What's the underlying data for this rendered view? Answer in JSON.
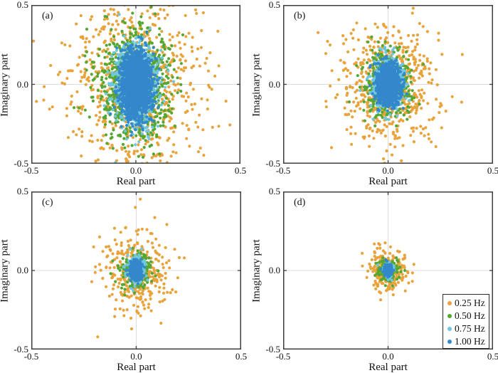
{
  "figure": {
    "background": "#ffffff",
    "axis_color": "#3d3d3d",
    "grid_color": "#dcdcdc",
    "text_color": "#111111",
    "x_label": "Real part",
    "y_label": "Imaginary part",
    "x_tick_labels": [
      "-0.5",
      "0.0",
      "0.5"
    ],
    "y_tick_labels": [
      "0.5",
      "0.0",
      "-0.5"
    ]
  },
  "legend": {
    "location": "bottom-right inside panel (d)",
    "entries": [
      {
        "label": "0.25 Hz",
        "color": "#E8A33C"
      },
      {
        "label": "0.50 Hz",
        "color": "#55A733"
      },
      {
        "label": "0.75 Hz",
        "color": "#6FC7E0"
      },
      {
        "label": "1.00 Hz",
        "color": "#3388CB"
      }
    ]
  },
  "chart_data": [
    {
      "type": "scatter",
      "panel_label": "(a)",
      "xlabel": "Real part",
      "ylabel": "Imaginary part",
      "xlim": [
        -0.5,
        0.5
      ],
      "ylim": [
        -0.5,
        0.5
      ],
      "x_ticks": [
        -0.5,
        0.0,
        0.5
      ],
      "y_ticks": [
        -0.5,
        0.0,
        0.5
      ],
      "gridlines_at": {
        "x": 0.0,
        "y": 0.0
      },
      "point_distribution": "zero-mean gaussian cloud, parameters estimated from pixels",
      "series": [
        {
          "name": "0.25 Hz",
          "color": "#E8A33C",
          "n": 800,
          "mean": [
            0,
            0
          ],
          "std": [
            0.165,
            0.31
          ]
        },
        {
          "name": "0.50 Hz",
          "color": "#55A733",
          "n": 850,
          "mean": [
            0,
            0
          ],
          "std": [
            0.085,
            0.175
          ]
        },
        {
          "name": "0.75 Hz",
          "color": "#6FC7E0",
          "n": 1000,
          "mean": [
            0,
            0
          ],
          "std": [
            0.05,
            0.12
          ]
        },
        {
          "name": "1.00 Hz",
          "color": "#3388CB",
          "n": 1700,
          "mean": [
            0,
            0
          ],
          "std": [
            0.035,
            0.1
          ]
        }
      ]
    },
    {
      "type": "scatter",
      "panel_label": "(b)",
      "xlabel": "Real part",
      "ylabel": "Imaginary part",
      "xlim": [
        -0.5,
        0.5
      ],
      "ylim": [
        -0.5,
        0.5
      ],
      "x_ticks": [
        -0.5,
        0.0,
        0.5
      ],
      "y_ticks": [
        -0.5,
        0.0,
        0.5
      ],
      "gridlines_at": {
        "x": 0.0,
        "y": 0.0
      },
      "point_distribution": "zero-mean gaussian cloud, parameters estimated from pixels",
      "series": [
        {
          "name": "0.25 Hz",
          "color": "#E8A33C",
          "n": 620,
          "mean": [
            0,
            0
          ],
          "std": [
            0.115,
            0.175
          ]
        },
        {
          "name": "0.50 Hz",
          "color": "#55A733",
          "n": 480,
          "mean": [
            0,
            0
          ],
          "std": [
            0.055,
            0.1
          ]
        },
        {
          "name": "0.75 Hz",
          "color": "#6FC7E0",
          "n": 650,
          "mean": [
            0,
            0
          ],
          "std": [
            0.036,
            0.075
          ]
        },
        {
          "name": "1.00 Hz",
          "color": "#3388CB",
          "n": 1200,
          "mean": [
            0,
            0
          ],
          "std": [
            0.026,
            0.06
          ]
        }
      ]
    },
    {
      "type": "scatter",
      "panel_label": "(c)",
      "xlabel": "Real part",
      "ylabel": "Imaginary part",
      "xlim": [
        -0.5,
        0.5
      ],
      "ylim": [
        -0.5,
        0.5
      ],
      "x_ticks": [
        -0.5,
        0.0,
        0.5
      ],
      "y_ticks": [
        -0.5,
        0.0,
        0.5
      ],
      "gridlines_at": {
        "x": 0.0,
        "y": 0.0
      },
      "point_distribution": "zero-mean gaussian cloud, parameters estimated from pixels",
      "series": [
        {
          "name": "0.25 Hz",
          "color": "#E8A33C",
          "n": 330,
          "mean": [
            0,
            0
          ],
          "std": [
            0.08,
            0.13
          ]
        },
        {
          "name": "0.50 Hz",
          "color": "#55A733",
          "n": 220,
          "mean": [
            0,
            0
          ],
          "std": [
            0.038,
            0.055
          ]
        },
        {
          "name": "0.75 Hz",
          "color": "#6FC7E0",
          "n": 260,
          "mean": [
            0,
            0
          ],
          "std": [
            0.02,
            0.04
          ]
        },
        {
          "name": "1.00 Hz",
          "color": "#3388CB",
          "n": 480,
          "mean": [
            0,
            0
          ],
          "std": [
            0.013,
            0.028
          ]
        }
      ]
    },
    {
      "type": "scatter",
      "panel_label": "(d)",
      "xlabel": "Real part",
      "ylabel": "Imaginary part",
      "xlim": [
        -0.5,
        0.5
      ],
      "ylim": [
        -0.5,
        0.5
      ],
      "x_ticks": [
        -0.5,
        0.0,
        0.5
      ],
      "y_ticks": [
        -0.5,
        0.0,
        0.5
      ],
      "gridlines_at": {
        "x": 0.0,
        "y": 0.0
      },
      "point_distribution": "zero-mean gaussian cloud, parameters estimated from pixels",
      "series": [
        {
          "name": "0.25 Hz",
          "color": "#E8A33C",
          "n": 240,
          "mean": [
            0,
            0
          ],
          "std": [
            0.045,
            0.07
          ]
        },
        {
          "name": "0.50 Hz",
          "color": "#55A733",
          "n": 160,
          "mean": [
            0,
            0
          ],
          "std": [
            0.024,
            0.038
          ]
        },
        {
          "name": "0.75 Hz",
          "color": "#6FC7E0",
          "n": 140,
          "mean": [
            0,
            0
          ],
          "std": [
            0.013,
            0.022
          ]
        },
        {
          "name": "1.00 Hz",
          "color": "#3388CB",
          "n": 280,
          "mean": [
            0,
            0
          ],
          "std": [
            0.009,
            0.016
          ]
        }
      ]
    }
  ]
}
